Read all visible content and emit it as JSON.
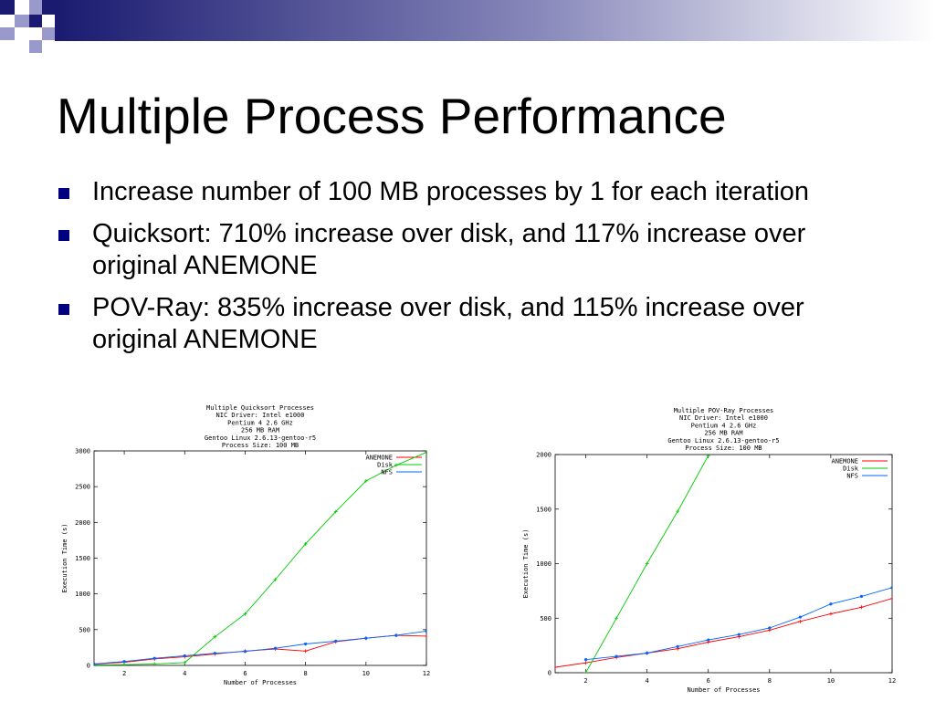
{
  "slide": {
    "title": "Multiple Process Performance",
    "bullets": [
      "Increase number of 100 MB processes by 1 for each iteration",
      "Quicksort: 710% increase over disk, and 117% increase over original ANEMONE",
      "POV-Ray: 835% increase over disk, and 115% increase over original ANEMONE"
    ],
    "colors": {
      "bullet": "#000080",
      "deco_dark": "#1a1a70",
      "deco_light": "#9999cc"
    }
  },
  "chart_data": [
    {
      "type": "line",
      "title": [
        "Multiple Quicksort Processes",
        "NIC Driver: Intel e1000",
        "Pentium 4 2.6 GHz",
        "256 MB RAM",
        "Gentoo Linux 2.6.13-gentoo-r5",
        "Process Size: 100 MB"
      ],
      "xlabel": "Number of Processes",
      "ylabel": "Execution Time (s)",
      "xlim": [
        1,
        12
      ],
      "ylim": [
        0,
        3000
      ],
      "xticks": [
        2,
        4,
        6,
        8,
        10,
        12
      ],
      "yticks": [
        0,
        500,
        1000,
        1500,
        2000,
        2500,
        3000
      ],
      "legend": "top-right",
      "series": [
        {
          "name": "ANEMONE",
          "color": "#ff0000",
          "x": [
            1,
            2,
            3,
            4,
            5,
            6,
            7,
            8,
            9,
            10,
            11,
            12
          ],
          "y": [
            15,
            45,
            90,
            120,
            160,
            200,
            230,
            200,
            330,
            380,
            420,
            410
          ]
        },
        {
          "name": "Disk",
          "color": "#00cc00",
          "x": [
            1,
            2,
            3,
            4,
            5,
            6,
            7,
            8,
            9,
            10,
            11,
            12
          ],
          "y": [
            5,
            10,
            20,
            40,
            400,
            720,
            1200,
            1700,
            2150,
            2580,
            2800,
            2980
          ]
        },
        {
          "name": "NFS",
          "color": "#0066ff",
          "x": [
            1,
            2,
            3,
            4,
            5,
            6,
            7,
            8,
            9,
            10,
            11,
            12
          ],
          "y": [
            20,
            55,
            100,
            135,
            170,
            195,
            240,
            300,
            340,
            380,
            420,
            480
          ]
        }
      ]
    },
    {
      "type": "line",
      "title": [
        "Multiple POV-Ray Processes",
        "NIC Driver: Intel e1000",
        "Pentium 4 2.6 GHz",
        "256 MB RAM",
        "Gentoo Linux 2.6.13-gentoo-r5",
        "Process Size: 100 MB"
      ],
      "xlabel": "Number of Processes",
      "ylabel": "Execution Time (s)",
      "xlim": [
        1,
        12
      ],
      "ylim": [
        0,
        2000
      ],
      "xticks": [
        2,
        4,
        6,
        8,
        10,
        12
      ],
      "yticks": [
        0,
        500,
        1000,
        1500,
        2000
      ],
      "legend": "top-right",
      "series": [
        {
          "name": "ANEMONE",
          "color": "#ff0000",
          "x": [
            1,
            2,
            3,
            4,
            5,
            6,
            7,
            8,
            9,
            10,
            11,
            12
          ],
          "y": [
            50,
            90,
            140,
            180,
            220,
            280,
            330,
            390,
            470,
            540,
            600,
            680
          ]
        },
        {
          "name": "Disk",
          "color": "#00cc00",
          "x": [
            2,
            3,
            4,
            5,
            6
          ],
          "y": [
            0,
            500,
            1000,
            1480,
            1990
          ]
        },
        {
          "name": "NFS",
          "color": "#0066ff",
          "x": [
            2,
            3,
            4,
            5,
            6,
            7,
            8,
            9,
            10,
            11,
            12
          ],
          "y": [
            120,
            150,
            180,
            240,
            300,
            350,
            410,
            510,
            630,
            700,
            780
          ]
        }
      ]
    }
  ]
}
